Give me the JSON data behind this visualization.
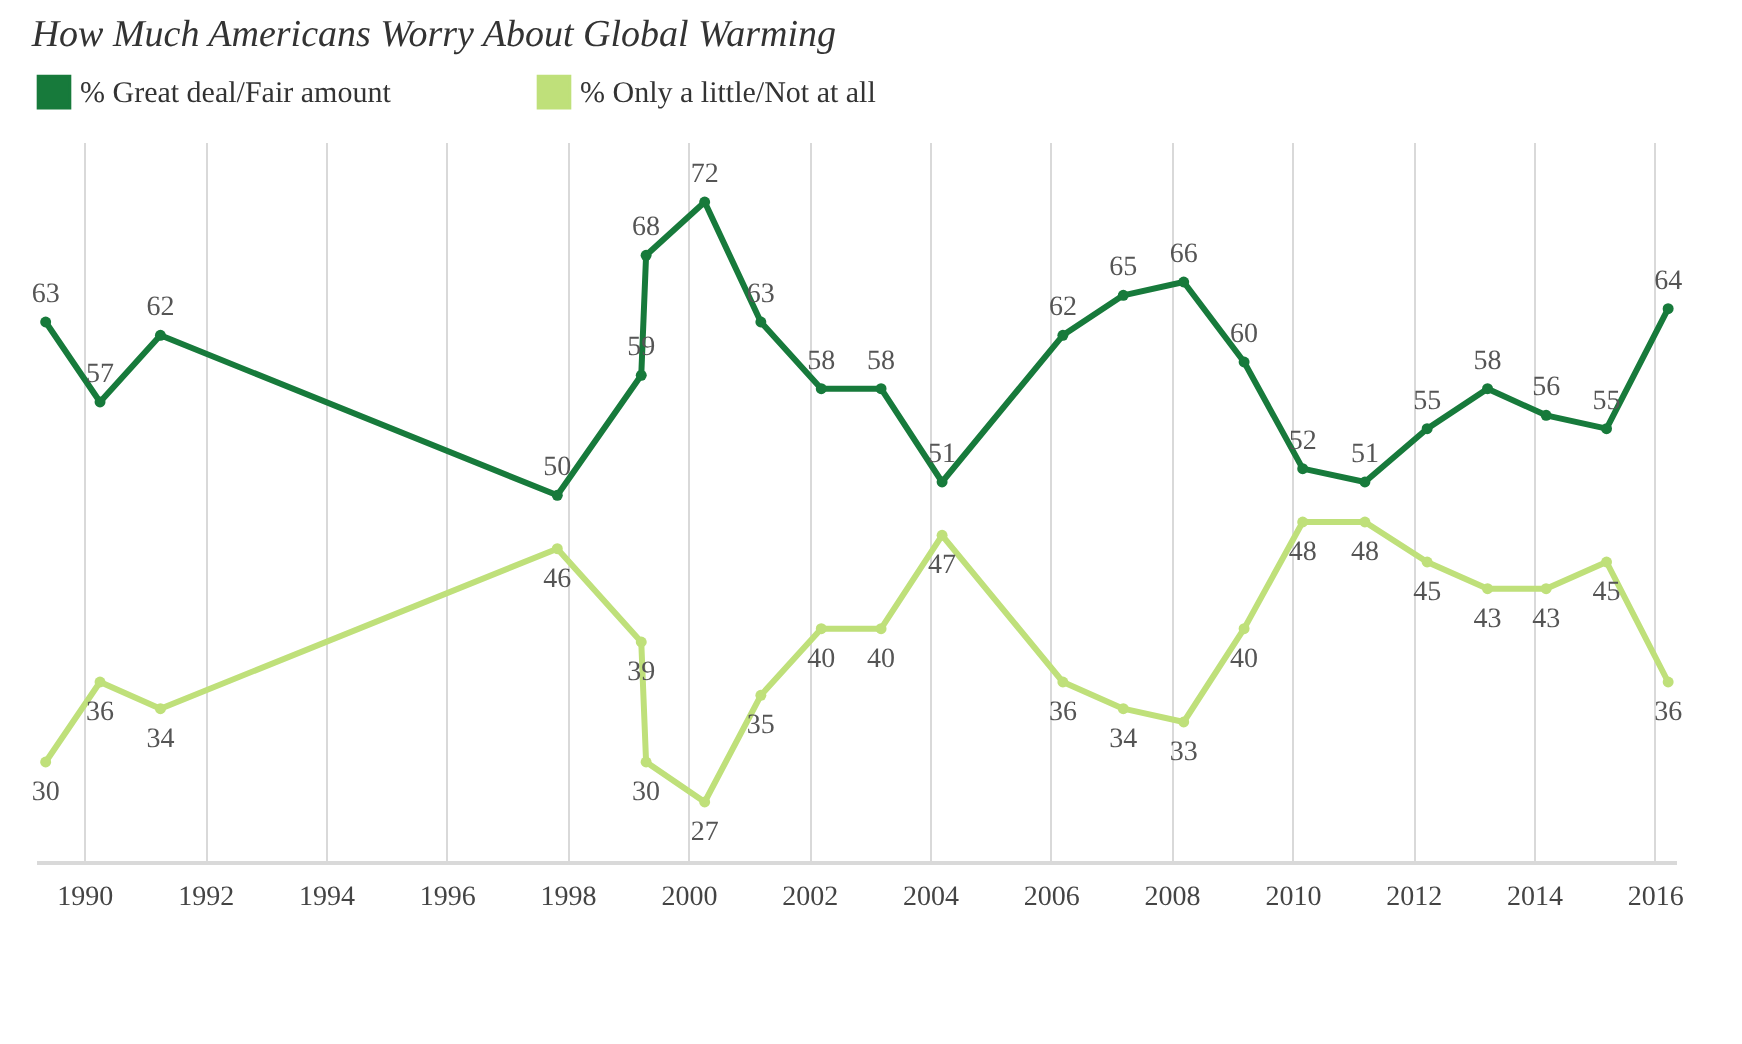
{
  "chart_data": {
    "type": "line",
    "title": "How Much Americans Worry About Global Warming",
    "x": [
      1989.36,
      1990.26,
      1991.26,
      1997.83,
      1999.22,
      1999.3,
      2000.27,
      2001.2,
      2002.2,
      2003.19,
      2004.2,
      2006.2,
      2007.2,
      2008.2,
      2009.2,
      2010.17,
      2011.2,
      2012.23,
      2013.23,
      2014.2,
      2015.2,
      2016.22
    ],
    "series": [
      {
        "name": "% Great deal/Fair amount",
        "color": "#177a3b",
        "values": [
          63,
          57,
          62,
          50,
          59,
          68,
          72,
          63,
          58,
          58,
          51,
          62,
          65,
          66,
          60,
          52,
          51,
          55,
          58,
          56,
          55,
          64
        ]
      },
      {
        "name": "% Only a little/Not at all",
        "color": "#bfe07a",
        "values": [
          30,
          36,
          34,
          46,
          39,
          30,
          27,
          35,
          40,
          40,
          47,
          36,
          34,
          33,
          40,
          48,
          48,
          45,
          43,
          43,
          45,
          36
        ]
      }
    ],
    "xlim": [
      1989.2,
      2016.35
    ],
    "xticks": [
      1990,
      1992,
      1994,
      1996,
      1998,
      2000,
      2002,
      2004,
      2006,
      2008,
      2010,
      2012,
      2014,
      2016
    ],
    "tick_labels": "x",
    "grid": "x",
    "legend": "top left",
    "marker": "circle",
    "line_style": "solid",
    "data_labels": true
  }
}
